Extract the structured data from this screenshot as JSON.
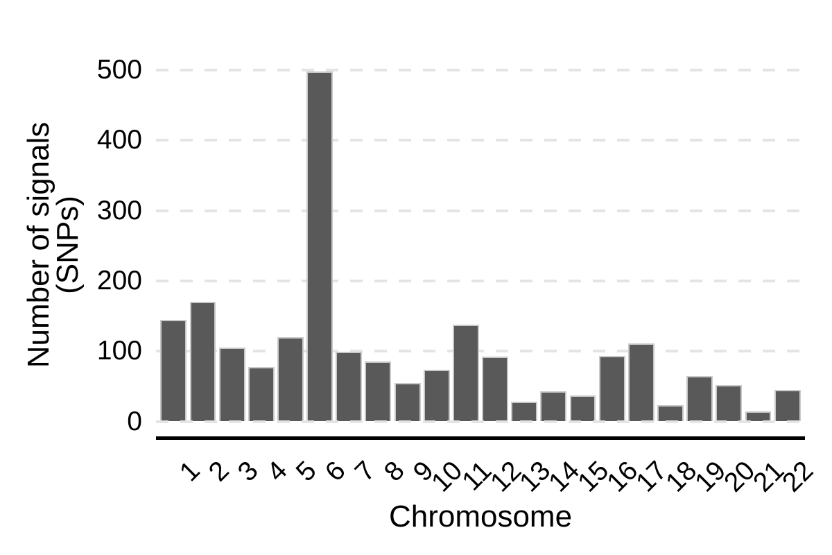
{
  "chart_data": {
    "type": "bar",
    "title": "",
    "xlabel": "Chromosome",
    "ylabel_lines": [
      "Number of signals",
      "(SNPs)"
    ],
    "categories": [
      "1",
      "2",
      "3",
      "4",
      "5",
      "6",
      "7",
      "8",
      "9",
      "10",
      "11",
      "12",
      "13",
      "14",
      "15",
      "16",
      "17",
      "18",
      "19",
      "20",
      "21",
      "22"
    ],
    "values": [
      145,
      170,
      105,
      77,
      120,
      498,
      99,
      85,
      55,
      74,
      138,
      92,
      28,
      43,
      37,
      93,
      111,
      23,
      65,
      52,
      14,
      45
    ],
    "y_ticks": [
      0,
      100,
      200,
      300,
      400,
      500
    ],
    "ylim": [
      0,
      500
    ],
    "grid": "horizontal-dashed",
    "legend": "none",
    "colors": {
      "bar_fill": "#595959",
      "bar_border": "#c9c9c9",
      "gridline": "#e4e4e4",
      "axis_line": "#000000",
      "text": "#000000",
      "background": "#ffffff"
    }
  }
}
